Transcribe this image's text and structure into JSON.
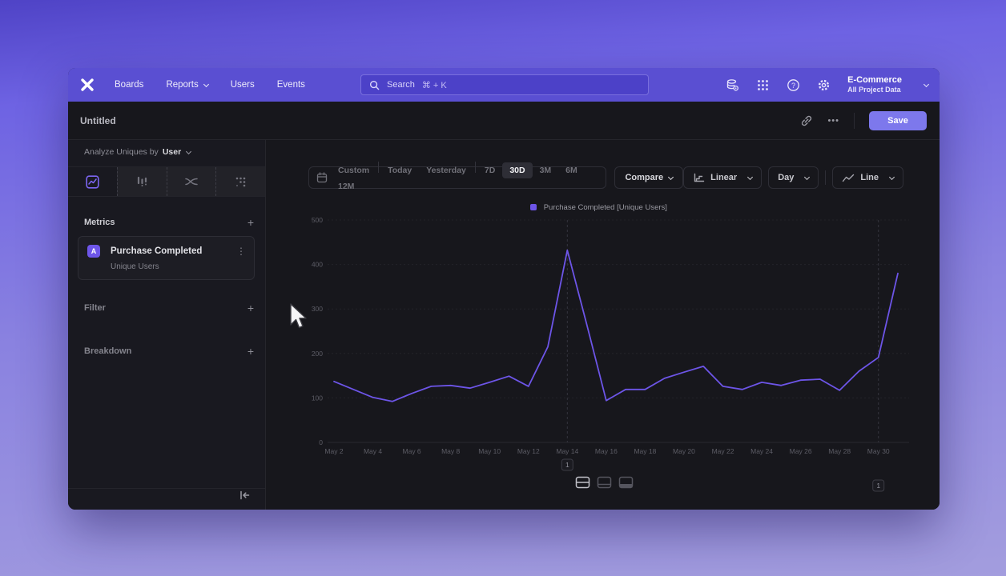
{
  "colors": {
    "accent": "#6e56ea",
    "line": "#6d55e8",
    "navbar": "#5a4fd2",
    "save": "#7d78ec"
  },
  "navbar": {
    "nav_items": [
      {
        "label": "Boards",
        "chevron": false
      },
      {
        "label": "Reports",
        "chevron": true
      },
      {
        "label": "Users",
        "chevron": false
      },
      {
        "label": "Events",
        "chevron": false
      }
    ],
    "search": {
      "placeholder": "Search",
      "shortcut": "⌘ + K"
    },
    "project": {
      "name": "E-Commerce",
      "scope": "All Project Data"
    }
  },
  "header": {
    "title": "Untitled",
    "more": "•••",
    "save": "Save"
  },
  "sidebar": {
    "analyze": {
      "prefix": "Analyze Uniques by",
      "value": "User"
    },
    "metrics": {
      "label": "Metrics",
      "add": "+"
    },
    "metric_card": {
      "badge": "A",
      "name": "Purchase Completed",
      "subtitle": "Unique Users",
      "menu": "⋮"
    },
    "filter": {
      "label": "Filter",
      "add": "+"
    },
    "breakdown": {
      "label": "Breakdown",
      "add": "+"
    }
  },
  "controls": {
    "date_ranges": [
      "Custom",
      "Today",
      "Yesterday",
      "7D",
      "30D",
      "3M",
      "6M",
      "12M"
    ],
    "selected_range": "30D",
    "compare": "Compare",
    "scale": "Linear",
    "interval": "Day",
    "chart_type": "Line"
  },
  "legend": {
    "label": "Purchase Completed [Unique Users]"
  },
  "chart_data": {
    "type": "line",
    "title": "",
    "xlabel": "",
    "ylabel": "",
    "x": [
      "May 2",
      "May 3",
      "May 4",
      "May 5",
      "May 6",
      "May 7",
      "May 8",
      "May 9",
      "May 10",
      "May 11",
      "May 12",
      "May 13",
      "May 14",
      "May 15",
      "May 16",
      "May 17",
      "May 18",
      "May 19",
      "May 20",
      "May 21",
      "May 22",
      "May 23",
      "May 24",
      "May 25",
      "May 26",
      "May 27",
      "May 28",
      "May 29",
      "May 30",
      "May 31"
    ],
    "series": [
      {
        "name": "Purchase Completed [Unique Users]",
        "values": [
          137,
          119,
          101,
          92,
          110,
          126,
          128,
          122,
          135,
          149,
          126,
          215,
          432,
          265,
          94,
          119,
          119,
          144,
          158,
          171,
          126,
          119,
          135,
          128,
          140,
          142,
          117,
          160,
          191,
          380
        ]
      }
    ],
    "ylim": [
      0,
      500
    ],
    "yticks": [
      0,
      100,
      200,
      300,
      400,
      500
    ],
    "x_tick_every": 2,
    "grid": "horizontal-dotted",
    "legend_position": "top-center",
    "annotations": [
      {
        "x": "May 14",
        "label": "1"
      },
      {
        "x": "May 30",
        "label": "1"
      }
    ]
  }
}
